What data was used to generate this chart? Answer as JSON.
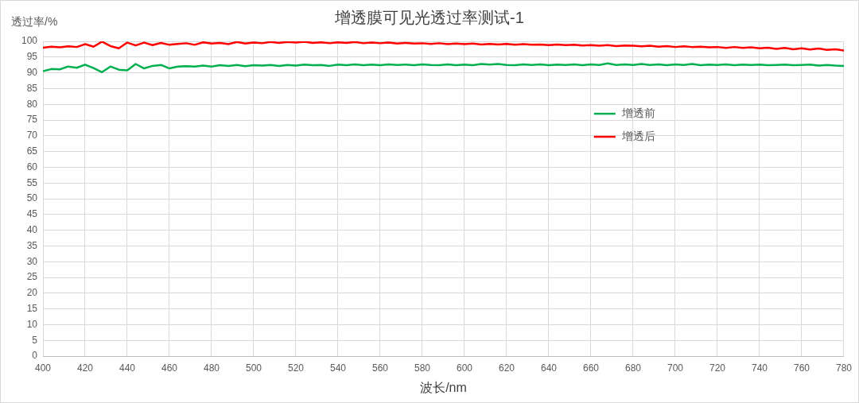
{
  "chart_data": {
    "type": "line",
    "title": "增透膜可见光透过率测试-1",
    "xlabel": "波长/nm",
    "ylabel": "透过率/%",
    "x": [
      400,
      404,
      408,
      412,
      416,
      420,
      424,
      428,
      432,
      436,
      440,
      444,
      448,
      452,
      456,
      460,
      464,
      468,
      472,
      476,
      480,
      484,
      488,
      492,
      496,
      500,
      504,
      508,
      512,
      516,
      520,
      524,
      528,
      532,
      536,
      540,
      544,
      548,
      552,
      556,
      560,
      564,
      568,
      572,
      576,
      580,
      584,
      588,
      592,
      596,
      600,
      604,
      608,
      612,
      616,
      620,
      624,
      628,
      632,
      636,
      640,
      644,
      648,
      652,
      656,
      660,
      664,
      668,
      672,
      676,
      680,
      684,
      688,
      692,
      696,
      700,
      704,
      708,
      712,
      716,
      720,
      724,
      728,
      732,
      736,
      740,
      744,
      748,
      752,
      756,
      760,
      764,
      768,
      772,
      776,
      780
    ],
    "series": [
      {
        "name": "增透前",
        "color": "#00b050",
        "values": [
          90.5,
          91.2,
          91.1,
          92.0,
          91.6,
          92.6,
          91.5,
          90.2,
          92.0,
          91.0,
          90.8,
          92.8,
          91.4,
          92.2,
          92.5,
          91.4,
          92.0,
          92.1,
          92.0,
          92.3,
          92.0,
          92.4,
          92.2,
          92.5,
          92.1,
          92.4,
          92.3,
          92.5,
          92.2,
          92.5,
          92.3,
          92.6,
          92.4,
          92.5,
          92.2,
          92.6,
          92.4,
          92.7,
          92.4,
          92.6,
          92.4,
          92.7,
          92.5,
          92.6,
          92.4,
          92.7,
          92.5,
          92.4,
          92.7,
          92.4,
          92.6,
          92.4,
          92.8,
          92.6,
          92.8,
          92.5,
          92.4,
          92.7,
          92.5,
          92.7,
          92.4,
          92.6,
          92.5,
          92.7,
          92.4,
          92.7,
          92.5,
          93.0,
          92.5,
          92.7,
          92.5,
          92.8,
          92.5,
          92.7,
          92.4,
          92.7,
          92.5,
          92.8,
          92.4,
          92.6,
          92.5,
          92.7,
          92.4,
          92.6,
          92.5,
          92.6,
          92.4,
          92.5,
          92.6,
          92.4,
          92.5,
          92.6,
          92.3,
          92.5,
          92.3,
          92.2
        ]
      },
      {
        "name": "增透后",
        "color": "#ff0000",
        "values": [
          98.0,
          98.3,
          98.1,
          98.4,
          98.2,
          99.1,
          98.3,
          99.9,
          98.5,
          97.8,
          99.6,
          98.7,
          99.6,
          98.8,
          99.5,
          98.9,
          99.2,
          99.4,
          98.9,
          99.7,
          99.3,
          99.5,
          99.1,
          99.8,
          99.3,
          99.6,
          99.4,
          99.8,
          99.5,
          99.8,
          99.6,
          99.9,
          99.5,
          99.7,
          99.4,
          99.7,
          99.5,
          99.8,
          99.4,
          99.6,
          99.4,
          99.6,
          99.3,
          99.5,
          99.3,
          99.4,
          99.2,
          99.4,
          99.1,
          99.3,
          99.1,
          99.3,
          99.0,
          99.2,
          99.0,
          99.2,
          98.9,
          99.1,
          98.9,
          99.0,
          98.8,
          99.0,
          98.8,
          98.9,
          98.7,
          98.8,
          98.6,
          98.8,
          98.5,
          98.7,
          98.6,
          98.4,
          98.6,
          98.3,
          98.5,
          98.2,
          98.4,
          98.2,
          98.3,
          98.1,
          98.2,
          97.9,
          98.2,
          97.9,
          98.1,
          97.8,
          98.0,
          97.6,
          97.9,
          97.5,
          97.8,
          97.4,
          97.7,
          97.3,
          97.5,
          97.1
        ]
      }
    ],
    "xlim": [
      400,
      780
    ],
    "xticks": [
      400,
      420,
      440,
      460,
      480,
      500,
      520,
      540,
      560,
      580,
      600,
      620,
      640,
      660,
      680,
      700,
      720,
      740,
      760,
      780
    ],
    "ylim": [
      0,
      100
    ],
    "yticks": [
      0,
      5,
      10,
      15,
      20,
      25,
      30,
      35,
      40,
      45,
      50,
      55,
      60,
      65,
      70,
      75,
      80,
      85,
      90,
      95,
      100
    ],
    "grid": true,
    "legend": "top right",
    "line_style": "solid"
  }
}
